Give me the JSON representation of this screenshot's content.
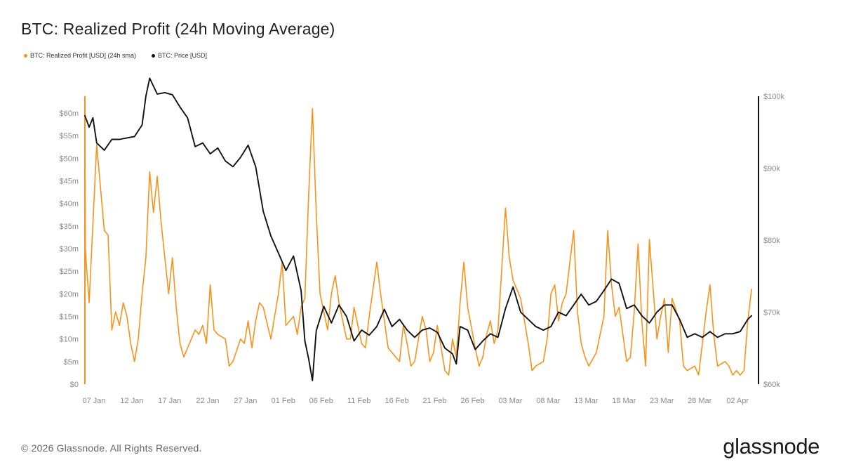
{
  "chart_data": {
    "type": "line",
    "title": "BTC: Realized Profit (24h Moving Average)",
    "legend_position": "top-left",
    "grid": false,
    "x": [
      "07 Jan",
      "12 Jan",
      "17 Jan",
      "22 Jan",
      "27 Jan",
      "01 Feb",
      "06 Feb",
      "11 Feb",
      "16 Feb",
      "21 Feb",
      "26 Feb",
      "03 Mar",
      "08 Mar",
      "13 Mar",
      "18 Mar",
      "23 Mar",
      "28 Mar",
      "02 Apr"
    ],
    "x_range": [
      "06 Jan",
      "07 Apr"
    ],
    "y_left": {
      "ticks": [
        "$0",
        "$5m",
        "$10m",
        "$15m",
        "$20m",
        "$25m",
        "$30m",
        "$35m",
        "$40m",
        "$45m",
        "$50m",
        "$55m",
        "$60m"
      ],
      "range": [
        0,
        64
      ],
      "unit": "USD millions",
      "color": "#f7931a"
    },
    "y_right": {
      "ticks": [
        "$60k",
        "$70k",
        "$80k",
        "$90k",
        "$100k"
      ],
      "range": [
        60,
        100
      ],
      "unit": "USD thousands",
      "color": "#111111"
    },
    "series": [
      {
        "name": "BTC: Realized Profit [USD] (24h sma)",
        "axis": "left",
        "color": "#f7931a",
        "points": [
          [
            "06 Jan",
            63
          ],
          [
            "06 Jan",
            30
          ],
          [
            "07 Jan",
            18
          ],
          [
            "08 Jan",
            53
          ],
          [
            "09 Jan",
            34
          ],
          [
            "09 Jan",
            33
          ],
          [
            "10 Jan",
            12
          ],
          [
            "10 Jan",
            16
          ],
          [
            "11 Jan",
            13
          ],
          [
            "11 Jan",
            18
          ],
          [
            "12 Jan",
            15
          ],
          [
            "12 Jan",
            9
          ],
          [
            "13 Jan",
            5
          ],
          [
            "13 Jan",
            10
          ],
          [
            "14 Jan",
            20
          ],
          [
            "14 Jan",
            28
          ],
          [
            "15 Jan",
            47
          ],
          [
            "15 Jan",
            38
          ],
          [
            "16 Jan",
            46
          ],
          [
            "16 Jan",
            36
          ],
          [
            "17 Jan",
            28
          ],
          [
            "17 Jan",
            20
          ],
          [
            "18 Jan",
            28
          ],
          [
            "18 Jan",
            17
          ],
          [
            "19 Jan",
            9
          ],
          [
            "19 Jan",
            6
          ],
          [
            "20 Jan",
            8
          ],
          [
            "21 Jan",
            12
          ],
          [
            "21 Jan",
            11
          ],
          [
            "22 Jan",
            13
          ],
          [
            "22 Jan",
            9
          ],
          [
            "23 Jan",
            22
          ],
          [
            "23 Jan",
            12
          ],
          [
            "24 Jan",
            11
          ],
          [
            "25 Jan",
            10
          ],
          [
            "25 Jan",
            4
          ],
          [
            "26 Jan",
            5
          ],
          [
            "27 Jan",
            10
          ],
          [
            "27 Jan",
            9
          ],
          [
            "28 Jan",
            14
          ],
          [
            "28 Jan",
            8
          ],
          [
            "29 Jan",
            14
          ],
          [
            "29 Jan",
            18
          ],
          [
            "30 Jan",
            17
          ],
          [
            "31 Jan",
            10
          ],
          [
            "31 Jan",
            15
          ],
          [
            "01 Feb",
            20
          ],
          [
            "01 Feb",
            27
          ],
          [
            "02 Feb",
            13
          ],
          [
            "03 Feb",
            15
          ],
          [
            "03 Feb",
            11
          ],
          [
            "04 Feb",
            17
          ],
          [
            "04 Feb",
            19
          ],
          [
            "05 Feb",
            42
          ],
          [
            "05 Feb",
            61
          ],
          [
            "06 Feb",
            38
          ],
          [
            "06 Feb",
            20
          ],
          [
            "07 Feb",
            16
          ],
          [
            "07 Feb",
            12
          ],
          [
            "08 Feb",
            20
          ],
          [
            "08 Feb",
            24
          ],
          [
            "09 Feb",
            18
          ],
          [
            "10 Feb",
            10
          ],
          [
            "10 Feb",
            10
          ],
          [
            "11 Feb",
            17
          ],
          [
            "12 Feb",
            9
          ],
          [
            "12 Feb",
            8
          ],
          [
            "13 Feb",
            15
          ],
          [
            "14 Feb",
            27
          ],
          [
            "14 Feb",
            20
          ],
          [
            "15 Feb",
            14
          ],
          [
            "15 Feb",
            8
          ],
          [
            "16 Feb",
            7
          ],
          [
            "17 Feb",
            5
          ],
          [
            "17 Feb",
            13
          ],
          [
            "18 Feb",
            9
          ],
          [
            "18 Feb",
            4
          ],
          [
            "19 Feb",
            5
          ],
          [
            "20 Feb",
            15
          ],
          [
            "20 Feb",
            12
          ],
          [
            "21 Feb",
            5
          ],
          [
            "21 Feb",
            7
          ],
          [
            "22 Feb",
            13
          ],
          [
            "23 Feb",
            3
          ],
          [
            "23 Feb",
            2
          ],
          [
            "24 Feb",
            10
          ],
          [
            "24 Feb",
            6
          ],
          [
            "25 Feb",
            18
          ],
          [
            "25 Feb",
            27
          ],
          [
            "26 Feb",
            17
          ],
          [
            "27 Feb",
            8
          ],
          [
            "27 Feb",
            4
          ],
          [
            "28 Feb",
            6
          ],
          [
            "28 Feb",
            11
          ],
          [
            "01 Mar",
            14
          ],
          [
            "01 Mar",
            9
          ],
          [
            "02 Mar",
            12
          ],
          [
            "03 Mar",
            39
          ],
          [
            "03 Mar",
            28
          ],
          [
            "04 Mar",
            23
          ],
          [
            "05 Mar",
            19
          ],
          [
            "05 Mar",
            14
          ],
          [
            "06 Mar",
            9
          ],
          [
            "06 Mar",
            3
          ],
          [
            "07 Mar",
            4
          ],
          [
            "08 Mar",
            5
          ],
          [
            "08 Mar",
            10
          ],
          [
            "09 Mar",
            20
          ],
          [
            "09 Mar",
            22
          ],
          [
            "10 Mar",
            14
          ],
          [
            "10 Mar",
            18
          ],
          [
            "11 Mar",
            20
          ],
          [
            "12 Mar",
            34
          ],
          [
            "12 Mar",
            16
          ],
          [
            "13 Mar",
            9
          ],
          [
            "13 Mar",
            6
          ],
          [
            "14 Mar",
            4
          ],
          [
            "15 Mar",
            7
          ],
          [
            "15 Mar",
            11
          ],
          [
            "16 Mar",
            15
          ],
          [
            "16 Mar",
            34
          ],
          [
            "17 Mar",
            22
          ],
          [
            "17 Mar",
            15
          ],
          [
            "18 Mar",
            17
          ],
          [
            "19 Mar",
            5
          ],
          [
            "19 Mar",
            6
          ],
          [
            "20 Mar",
            16
          ],
          [
            "20 Mar",
            31
          ],
          [
            "21 Mar",
            14
          ],
          [
            "21 Mar",
            4
          ],
          [
            "22 Mar",
            32
          ],
          [
            "22 Mar",
            21
          ],
          [
            "23 Mar",
            10
          ],
          [
            "23 Mar",
            15
          ],
          [
            "24 Mar",
            19
          ],
          [
            "24 Mar",
            7
          ],
          [
            "25 Mar",
            19
          ],
          [
            "26 Mar",
            14
          ],
          [
            "26 Mar",
            4
          ],
          [
            "27 Mar",
            3
          ],
          [
            "28 Mar",
            4
          ],
          [
            "28 Mar",
            2
          ],
          [
            "29 Mar",
            9
          ],
          [
            "29 Mar",
            16
          ],
          [
            "30 Mar",
            22
          ],
          [
            "30 Mar",
            11
          ],
          [
            "31 Mar",
            4
          ],
          [
            "01 Apr",
            5
          ],
          [
            "01 Apr",
            4
          ],
          [
            "02 Apr",
            2
          ],
          [
            "02 Apr",
            3
          ],
          [
            "03 Apr",
            2
          ],
          [
            "03 Apr",
            3
          ],
          [
            "04 Apr",
            14
          ],
          [
            "04 Apr",
            21
          ]
        ]
      },
      {
        "name": "BTC: Price [USD]",
        "axis": "right",
        "color": "#111111",
        "points": [
          [
            "06 Jan",
            97.3
          ],
          [
            "07 Jan",
            95.7
          ],
          [
            "07 Jan",
            97.0
          ],
          [
            "08 Jan",
            93.5
          ],
          [
            "09 Jan",
            92.5
          ],
          [
            "10 Jan",
            94.0
          ],
          [
            "11 Jan",
            94.0
          ],
          [
            "12 Jan",
            94.2
          ],
          [
            "13 Jan",
            94.4
          ],
          [
            "14 Jan",
            96.0
          ],
          [
            "14 Jan",
            100.0
          ],
          [
            "15 Jan",
            102.5
          ],
          [
            "16 Jan",
            100.3
          ],
          [
            "17 Jan",
            100.5
          ],
          [
            "18 Jan",
            100.2
          ],
          [
            "19 Jan",
            98.5
          ],
          [
            "20 Jan",
            97.0
          ],
          [
            "21 Jan",
            93.0
          ],
          [
            "22 Jan",
            93.5
          ],
          [
            "23 Jan",
            92.0
          ],
          [
            "24 Jan",
            92.8
          ],
          [
            "25 Jan",
            91.0
          ],
          [
            "26 Jan",
            90.2
          ],
          [
            "27 Jan",
            91.5
          ],
          [
            "28 Jan",
            93.2
          ],
          [
            "29 Jan",
            90.2
          ],
          [
            "30 Jan",
            84.0
          ],
          [
            "31 Jan",
            80.6
          ],
          [
            "01 Feb",
            78.2
          ],
          [
            "02 Feb",
            75.8
          ],
          [
            "03 Feb",
            77.8
          ],
          [
            "04 Feb",
            73.0
          ],
          [
            "04 Feb",
            66.0
          ],
          [
            "05 Feb",
            63.5
          ],
          [
            "05 Feb",
            60.5
          ],
          [
            "06 Feb",
            67.4
          ],
          [
            "07 Feb",
            70.8
          ],
          [
            "08 Feb",
            68.5
          ],
          [
            "09 Feb",
            71.0
          ],
          [
            "10 Feb",
            69.4
          ],
          [
            "11 Feb",
            66.0
          ],
          [
            "12 Feb",
            67.5
          ],
          [
            "13 Feb",
            66.8
          ],
          [
            "14 Feb",
            68.0
          ],
          [
            "15 Feb",
            70.4
          ],
          [
            "16 Feb",
            68.0
          ],
          [
            "17 Feb",
            69.0
          ],
          [
            "18 Feb",
            67.5
          ],
          [
            "19 Feb",
            66.5
          ],
          [
            "20 Feb",
            67.5
          ],
          [
            "21 Feb",
            67.8
          ],
          [
            "22 Feb",
            67.2
          ],
          [
            "23 Feb",
            65.0
          ],
          [
            "24 Feb",
            64.2
          ],
          [
            "24 Feb",
            62.8
          ],
          [
            "25 Feb",
            68.0
          ],
          [
            "26 Feb",
            67.5
          ],
          [
            "27 Feb",
            64.8
          ],
          [
            "28 Feb",
            66.0
          ],
          [
            "01 Mar",
            67.0
          ],
          [
            "02 Mar",
            66.5
          ],
          [
            "03 Mar",
            70.5
          ],
          [
            "04 Mar",
            73.5
          ],
          [
            "05 Mar",
            70.0
          ],
          [
            "06 Mar",
            69.0
          ],
          [
            "07 Mar",
            68.0
          ],
          [
            "08 Mar",
            67.5
          ],
          [
            "09 Mar",
            68.0
          ],
          [
            "10 Mar",
            70.0
          ],
          [
            "11 Mar",
            69.5
          ],
          [
            "12 Mar",
            71.0
          ],
          [
            "13 Mar",
            72.5
          ],
          [
            "14 Mar",
            71.0
          ],
          [
            "15 Mar",
            71.5
          ],
          [
            "16 Mar",
            73.0
          ],
          [
            "17 Mar",
            74.6
          ],
          [
            "18 Mar",
            74.0
          ],
          [
            "19 Mar",
            70.5
          ],
          [
            "20 Mar",
            71.0
          ],
          [
            "21 Mar",
            69.5
          ],
          [
            "22 Mar",
            68.5
          ],
          [
            "23 Mar",
            70.0
          ],
          [
            "24 Mar",
            71.0
          ],
          [
            "25 Mar",
            71.0
          ],
          [
            "26 Mar",
            69.0
          ],
          [
            "27 Mar",
            66.5
          ],
          [
            "28 Mar",
            67.0
          ],
          [
            "29 Mar",
            66.5
          ],
          [
            "30 Mar",
            67.3
          ],
          [
            "31 Mar",
            66.5
          ],
          [
            "01 Apr",
            67.0
          ],
          [
            "02 Apr",
            67.0
          ],
          [
            "03 Apr",
            67.3
          ],
          [
            "04 Apr",
            69.0
          ],
          [
            "04 Apr",
            69.5
          ]
        ]
      }
    ]
  },
  "footer": {
    "copyright": "© 2026 Glassnode. All Rights Reserved.",
    "brand": "glassnode"
  }
}
